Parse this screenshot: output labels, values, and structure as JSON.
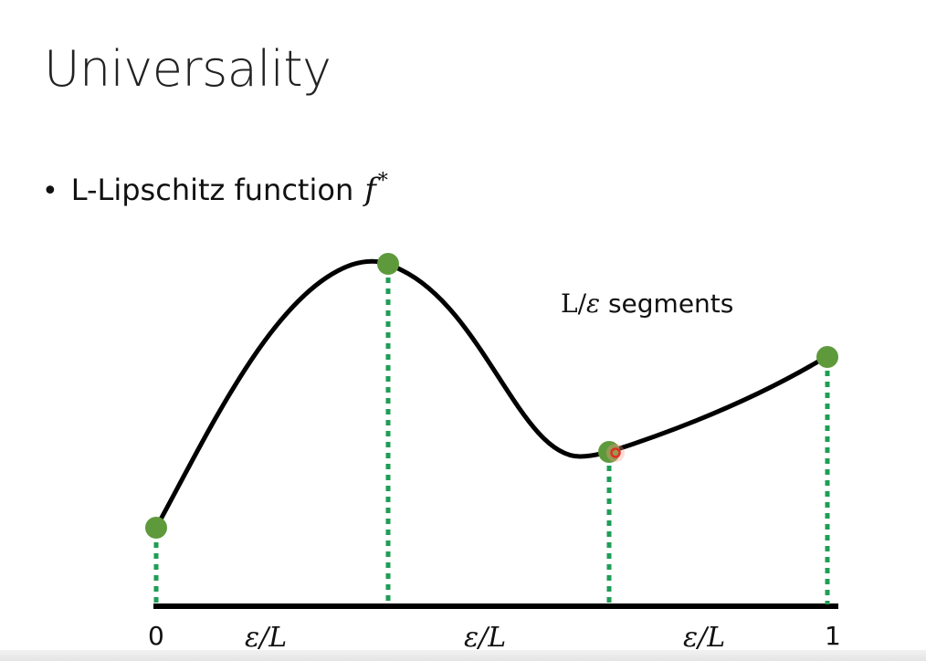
{
  "slide": {
    "title": "Universality",
    "bullet": {
      "text": "L-Lipschitz function",
      "math_symbol": "f",
      "math_superscript": "*"
    },
    "segments_label": {
      "L": "L",
      "slash": "/",
      "eps": "ε",
      "rest": " segments"
    },
    "axis": {
      "left_tick": "0",
      "right_tick": "1",
      "segment_labels": [
        "ε/L",
        "ε/L",
        "ε/L"
      ]
    },
    "colors": {
      "curve": "#000000",
      "dashed_lines": "#1e9e55",
      "points": "#5e9a3c",
      "cursor": "#e03020"
    }
  }
}
